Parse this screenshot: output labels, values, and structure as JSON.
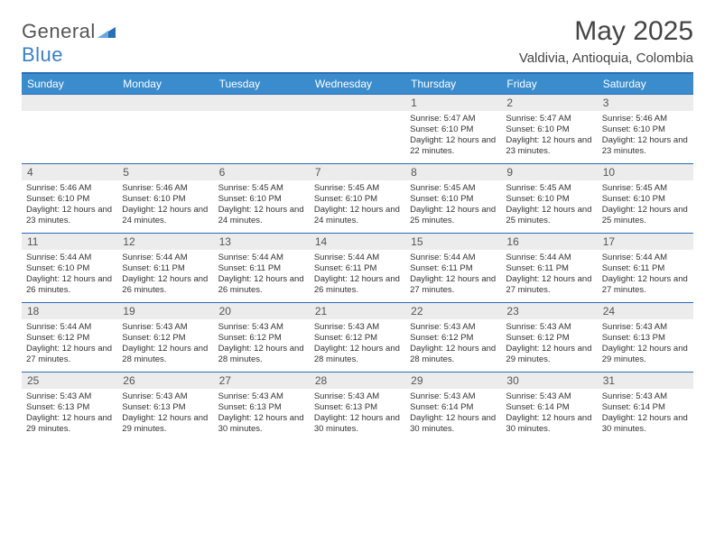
{
  "brand": {
    "name_a": "General",
    "name_b": "Blue"
  },
  "title": "May 2025",
  "location": "Valdivia, Antioquia, Colombia",
  "colors": {
    "header_bar": "#3b8ccc",
    "accent_border": "#2a6db8",
    "daynum_bg": "#ececec",
    "text": "#333333",
    "title_text": "#444444"
  },
  "weekdays": [
    "Sunday",
    "Monday",
    "Tuesday",
    "Wednesday",
    "Thursday",
    "Friday",
    "Saturday"
  ],
  "weeks": [
    [
      null,
      null,
      null,
      null,
      {
        "d": "1",
        "sr": "5:47 AM",
        "ss": "6:10 PM",
        "dl": "12 hours and 22 minutes."
      },
      {
        "d": "2",
        "sr": "5:47 AM",
        "ss": "6:10 PM",
        "dl": "12 hours and 23 minutes."
      },
      {
        "d": "3",
        "sr": "5:46 AM",
        "ss": "6:10 PM",
        "dl": "12 hours and 23 minutes."
      }
    ],
    [
      {
        "d": "4",
        "sr": "5:46 AM",
        "ss": "6:10 PM",
        "dl": "12 hours and 23 minutes."
      },
      {
        "d": "5",
        "sr": "5:46 AM",
        "ss": "6:10 PM",
        "dl": "12 hours and 24 minutes."
      },
      {
        "d": "6",
        "sr": "5:45 AM",
        "ss": "6:10 PM",
        "dl": "12 hours and 24 minutes."
      },
      {
        "d": "7",
        "sr": "5:45 AM",
        "ss": "6:10 PM",
        "dl": "12 hours and 24 minutes."
      },
      {
        "d": "8",
        "sr": "5:45 AM",
        "ss": "6:10 PM",
        "dl": "12 hours and 25 minutes."
      },
      {
        "d": "9",
        "sr": "5:45 AM",
        "ss": "6:10 PM",
        "dl": "12 hours and 25 minutes."
      },
      {
        "d": "10",
        "sr": "5:45 AM",
        "ss": "6:10 PM",
        "dl": "12 hours and 25 minutes."
      }
    ],
    [
      {
        "d": "11",
        "sr": "5:44 AM",
        "ss": "6:10 PM",
        "dl": "12 hours and 26 minutes."
      },
      {
        "d": "12",
        "sr": "5:44 AM",
        "ss": "6:11 PM",
        "dl": "12 hours and 26 minutes."
      },
      {
        "d": "13",
        "sr": "5:44 AM",
        "ss": "6:11 PM",
        "dl": "12 hours and 26 minutes."
      },
      {
        "d": "14",
        "sr": "5:44 AM",
        "ss": "6:11 PM",
        "dl": "12 hours and 26 minutes."
      },
      {
        "d": "15",
        "sr": "5:44 AM",
        "ss": "6:11 PM",
        "dl": "12 hours and 27 minutes."
      },
      {
        "d": "16",
        "sr": "5:44 AM",
        "ss": "6:11 PM",
        "dl": "12 hours and 27 minutes."
      },
      {
        "d": "17",
        "sr": "5:44 AM",
        "ss": "6:11 PM",
        "dl": "12 hours and 27 minutes."
      }
    ],
    [
      {
        "d": "18",
        "sr": "5:44 AM",
        "ss": "6:12 PM",
        "dl": "12 hours and 27 minutes."
      },
      {
        "d": "19",
        "sr": "5:43 AM",
        "ss": "6:12 PM",
        "dl": "12 hours and 28 minutes."
      },
      {
        "d": "20",
        "sr": "5:43 AM",
        "ss": "6:12 PM",
        "dl": "12 hours and 28 minutes."
      },
      {
        "d": "21",
        "sr": "5:43 AM",
        "ss": "6:12 PM",
        "dl": "12 hours and 28 minutes."
      },
      {
        "d": "22",
        "sr": "5:43 AM",
        "ss": "6:12 PM",
        "dl": "12 hours and 28 minutes."
      },
      {
        "d": "23",
        "sr": "5:43 AM",
        "ss": "6:12 PM",
        "dl": "12 hours and 29 minutes."
      },
      {
        "d": "24",
        "sr": "5:43 AM",
        "ss": "6:13 PM",
        "dl": "12 hours and 29 minutes."
      }
    ],
    [
      {
        "d": "25",
        "sr": "5:43 AM",
        "ss": "6:13 PM",
        "dl": "12 hours and 29 minutes."
      },
      {
        "d": "26",
        "sr": "5:43 AM",
        "ss": "6:13 PM",
        "dl": "12 hours and 29 minutes."
      },
      {
        "d": "27",
        "sr": "5:43 AM",
        "ss": "6:13 PM",
        "dl": "12 hours and 30 minutes."
      },
      {
        "d": "28",
        "sr": "5:43 AM",
        "ss": "6:13 PM",
        "dl": "12 hours and 30 minutes."
      },
      {
        "d": "29",
        "sr": "5:43 AM",
        "ss": "6:14 PM",
        "dl": "12 hours and 30 minutes."
      },
      {
        "d": "30",
        "sr": "5:43 AM",
        "ss": "6:14 PM",
        "dl": "12 hours and 30 minutes."
      },
      {
        "d": "31",
        "sr": "5:43 AM",
        "ss": "6:14 PM",
        "dl": "12 hours and 30 minutes."
      }
    ]
  ],
  "labels": {
    "sunrise": "Sunrise:",
    "sunset": "Sunset:",
    "daylight": "Daylight:"
  }
}
